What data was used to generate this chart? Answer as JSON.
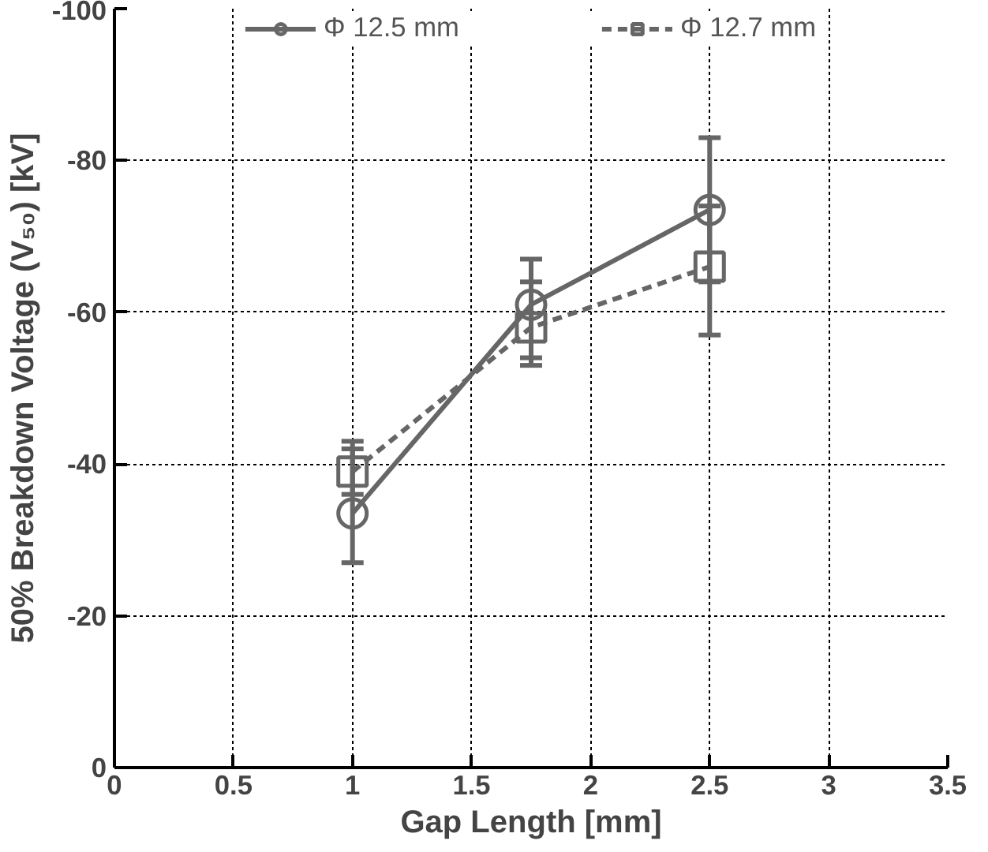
{
  "chart_data": {
    "type": "line",
    "xlabel": "Gap Length [mm]",
    "ylabel": "50% Breakdown Voltage (V₅₀) [kV]",
    "x": [
      1,
      1.75,
      2.5
    ],
    "series": [
      {
        "name": "Φ 12.5 mm",
        "color": "#666666",
        "values": [
          -33.5,
          -61,
          -73.5
        ],
        "errors": [
          [
            -27,
            -42
          ],
          [
            -54,
            -67
          ],
          [
            -64,
            -83
          ]
        ],
        "marker": "circle",
        "line_style": "solid"
      },
      {
        "name": "Φ 12.7 mm",
        "color": "#666666",
        "values": [
          -39,
          -58,
          -66
        ],
        "errors": [
          [
            -36,
            -43
          ],
          [
            -53,
            -64
          ],
          [
            -57,
            -74
          ]
        ],
        "marker": "square",
        "line_style": "dashed"
      }
    ],
    "xlim": [
      0,
      3.5
    ],
    "xticks": [
      0,
      0.5,
      1,
      1.5,
      2,
      2.5,
      3,
      3.5
    ],
    "ylim": [
      0,
      -100
    ],
    "yticks": [
      0,
      -20,
      -40,
      -60,
      -80,
      -100
    ],
    "grid": true,
    "legend": "top"
  }
}
